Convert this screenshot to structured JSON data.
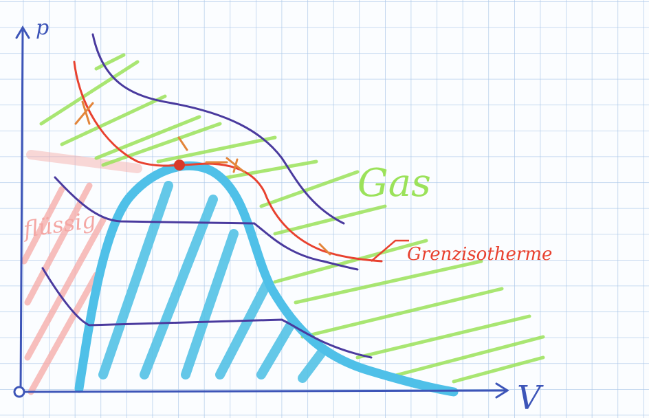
{
  "axes": {
    "y_label": "p",
    "x_label": "V"
  },
  "regions": {
    "gas": "Gas",
    "liquid": "flüssig"
  },
  "labels": {
    "critical_isotherm": "Grenzisotherme"
  }
}
